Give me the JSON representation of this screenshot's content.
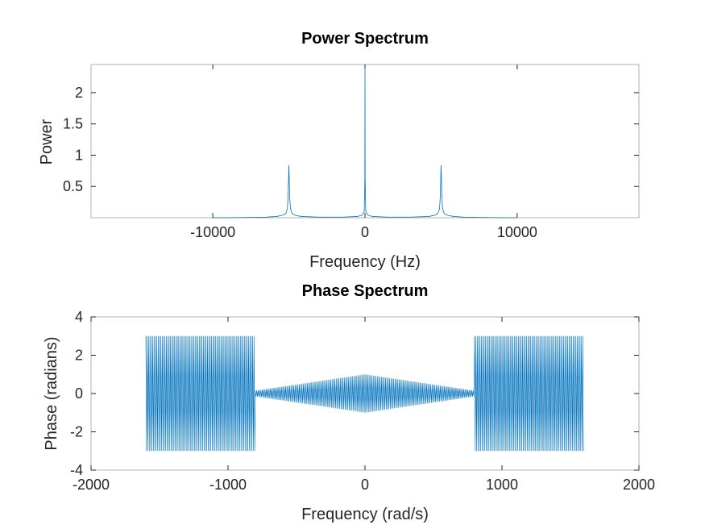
{
  "chart_data": [
    {
      "type": "line",
      "title": "Power Spectrum",
      "xlabel": "Frequency (Hz)",
      "ylabel": "Power",
      "xlim": [
        -18000,
        18000
      ],
      "ylim": [
        0,
        2.45
      ],
      "xticks": [
        -10000,
        0,
        10000
      ],
      "xtick_labels": [
        "-10000",
        "0",
        "10000"
      ],
      "yticks": [
        0.5,
        1,
        1.5,
        2
      ],
      "ytick_labels": [
        "0.5",
        "1",
        "1.5",
        "2"
      ],
      "grid": false,
      "series": [
        {
          "color": "#0072bd",
          "x": [
            -10000,
            -8000,
            -6500,
            -5800,
            -5400,
            -5200,
            -5100,
            -5050,
            -5000,
            -4950,
            -4900,
            -4800,
            -4600,
            -4200,
            -3000,
            -1500,
            -500,
            -200,
            -50,
            -10,
            0,
            10,
            50,
            200,
            500,
            1500,
            3000,
            4200,
            4600,
            4800,
            4900,
            4950,
            5000,
            5050,
            5100,
            5200,
            5400,
            5800,
            6500,
            8000,
            10000
          ],
          "y": [
            0.0,
            0.003,
            0.01,
            0.02,
            0.04,
            0.07,
            0.15,
            0.35,
            0.84,
            0.35,
            0.15,
            0.07,
            0.04,
            0.02,
            0.01,
            0.01,
            0.02,
            0.04,
            0.1,
            0.6,
            2.4,
            0.6,
            0.1,
            0.04,
            0.02,
            0.01,
            0.01,
            0.02,
            0.04,
            0.07,
            0.15,
            0.35,
            0.84,
            0.35,
            0.15,
            0.07,
            0.04,
            0.02,
            0.01,
            0.003,
            0.0
          ]
        }
      ]
    },
    {
      "type": "line",
      "title": "Phase Spectrum",
      "xlabel": "Frequency (rad/s)",
      "ylabel": "Phase (radians)",
      "xlim": [
        -2000,
        2000
      ],
      "ylim": [
        -4,
        4
      ],
      "xticks": [
        -2000,
        -1000,
        0,
        1000,
        2000
      ],
      "xtick_labels": [
        "-2000",
        "-1000",
        "0",
        "1000",
        "2000"
      ],
      "yticks": [
        -4,
        -2,
        0,
        2,
        4
      ],
      "ytick_labels": [
        "-4",
        "-2",
        "0",
        "2",
        "4"
      ],
      "grid": false,
      "series": [
        {
          "color": "#0072bd",
          "x_range": [
            -1600,
            1600
          ],
          "oscillation_step": 10,
          "segments": [
            {
              "x": [
                -1600,
                -800
              ],
              "amplitude": 3.0,
              "baseline": 0.0
            },
            {
              "x": [
                -800,
                800
              ],
              "amplitude": 1.0,
              "baseline": 0.0
            },
            {
              "x": [
                800,
                1600
              ],
              "amplitude": 3.0,
              "baseline": 0.0
            }
          ]
        }
      ]
    }
  ]
}
